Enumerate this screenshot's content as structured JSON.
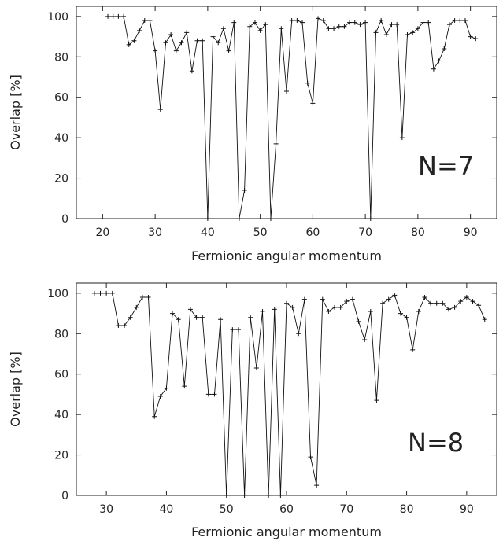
{
  "chart_data": [
    {
      "type": "line",
      "xlabel": "Fermionic angular momentum",
      "ylabel": "Overlap [%]",
      "annotation": "N=7",
      "xlim": [
        15,
        95
      ],
      "ylim": [
        0,
        105
      ],
      "xticks": [
        20,
        30,
        40,
        50,
        60,
        70,
        80,
        90
      ],
      "yticks": [
        0,
        20,
        40,
        60,
        80,
        100
      ],
      "grid": false,
      "marker": "plus",
      "series": [
        {
          "x": [
            21,
            22,
            23,
            24,
            25,
            26,
            27,
            28,
            29,
            30,
            31,
            32,
            33,
            34,
            35,
            36,
            37,
            38,
            39,
            40,
            41,
            42,
            43,
            44,
            45,
            46,
            47,
            48,
            49,
            50,
            51,
            52,
            53,
            54,
            55,
            56,
            57,
            58,
            59,
            60,
            61,
            62,
            63,
            64,
            65,
            66,
            67,
            68,
            69,
            70,
            71,
            72,
            73,
            74,
            75,
            76,
            77,
            78,
            79,
            80,
            81,
            82,
            83,
            84,
            85,
            86,
            87,
            88,
            89,
            90,
            91
          ],
          "y": [
            100,
            100,
            100,
            100,
            86,
            88,
            93,
            98,
            98,
            83,
            54,
            87,
            91,
            83,
            87,
            92,
            73,
            88,
            88,
            0,
            90,
            87,
            94,
            83,
            97,
            0,
            14,
            95,
            97,
            93,
            96,
            0,
            37,
            94,
            63,
            98,
            98,
            97,
            67,
            57,
            99,
            98,
            94,
            94,
            95,
            95,
            97,
            97,
            96,
            97,
            0,
            92,
            98,
            91,
            96,
            96,
            40,
            91,
            92,
            94,
            97,
            97,
            74,
            78,
            84,
            96,
            98,
            98,
            98,
            90,
            89
          ]
        }
      ]
    },
    {
      "type": "line",
      "xlabel": "Fermionic angular momentum",
      "ylabel": "Overlap [%]",
      "annotation": "N=8",
      "xlim": [
        25,
        95
      ],
      "ylim": [
        0,
        105
      ],
      "xticks": [
        30,
        40,
        50,
        60,
        70,
        80,
        90
      ],
      "yticks": [
        0,
        20,
        40,
        60,
        80,
        100
      ],
      "grid": false,
      "marker": "plus",
      "series": [
        {
          "x": [
            28,
            29,
            30,
            31,
            32,
            33,
            34,
            35,
            36,
            37,
            38,
            39,
            40,
            41,
            42,
            43,
            44,
            45,
            46,
            47,
            48,
            49,
            50,
            51,
            52,
            53,
            54,
            55,
            56,
            57,
            58,
            59,
            60,
            61,
            62,
            63,
            64,
            65,
            66,
            67,
            68,
            69,
            70,
            71,
            72,
            73,
            74,
            75,
            76,
            77,
            78,
            79,
            80,
            81,
            82,
            83,
            84,
            85,
            86,
            87,
            88,
            89,
            90,
            91,
            92,
            93
          ],
          "y": [
            100,
            100,
            100,
            100,
            84,
            84,
            88,
            93,
            98,
            98,
            39,
            49,
            53,
            90,
            87,
            54,
            92,
            88,
            88,
            50,
            50,
            87,
            0,
            82,
            82,
            0,
            88,
            63,
            91,
            0,
            92,
            0,
            95,
            93,
            80,
            97,
            19,
            5,
            97,
            91,
            93,
            93,
            96,
            97,
            86,
            77,
            91,
            47,
            95,
            97,
            99,
            90,
            88,
            72,
            91,
            98,
            95,
            95,
            95,
            92,
            93,
            96,
            98,
            96,
            94,
            87
          ]
        }
      ]
    }
  ]
}
